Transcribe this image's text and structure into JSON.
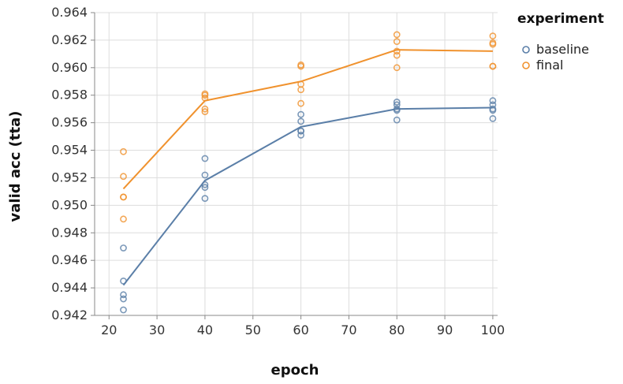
{
  "chart_data": {
    "type": "line",
    "xlabel": "epoch",
    "ylabel": "valid acc (tta)",
    "xlim": [
      17,
      101
    ],
    "ylim": [
      0.942,
      0.964
    ],
    "xticks": [
      "20",
      "30",
      "40",
      "50",
      "60",
      "70",
      "80",
      "90",
      "100"
    ],
    "yticks": [
      "0.942",
      "0.944",
      "0.946",
      "0.948",
      "0.950",
      "0.952",
      "0.954",
      "0.956",
      "0.958",
      "0.960",
      "0.962",
      "0.964"
    ],
    "grid": true,
    "legend": {
      "title": "experiment",
      "placement": "top-right"
    },
    "series": [
      {
        "name": "baseline",
        "color": "#5b7fa8",
        "line": [
          {
            "x": 23,
            "y": 0.9442
          },
          {
            "x": 40,
            "y": 0.9518
          },
          {
            "x": 60,
            "y": 0.9557
          },
          {
            "x": 80,
            "y": 0.957
          },
          {
            "x": 100,
            "y": 0.9571
          }
        ],
        "points": [
          {
            "x": 23,
            "y": 0.9469
          },
          {
            "x": 23,
            "y": 0.9445
          },
          {
            "x": 23,
            "y": 0.9435
          },
          {
            "x": 23,
            "y": 0.9432
          },
          {
            "x": 23,
            "y": 0.9424
          },
          {
            "x": 40,
            "y": 0.9534
          },
          {
            "x": 40,
            "y": 0.9522
          },
          {
            "x": 40,
            "y": 0.9515
          },
          {
            "x": 40,
            "y": 0.9513
          },
          {
            "x": 40,
            "y": 0.9505
          },
          {
            "x": 60,
            "y": 0.9566
          },
          {
            "x": 60,
            "y": 0.9561
          },
          {
            "x": 60,
            "y": 0.9554
          },
          {
            "x": 60,
            "y": 0.9554
          },
          {
            "x": 60,
            "y": 0.9551
          },
          {
            "x": 80,
            "y": 0.9575
          },
          {
            "x": 80,
            "y": 0.9573
          },
          {
            "x": 80,
            "y": 0.957
          },
          {
            "x": 80,
            "y": 0.9569
          },
          {
            "x": 80,
            "y": 0.9562
          },
          {
            "x": 100,
            "y": 0.9576
          },
          {
            "x": 100,
            "y": 0.9573
          },
          {
            "x": 100,
            "y": 0.957
          },
          {
            "x": 100,
            "y": 0.9569
          },
          {
            "x": 100,
            "y": 0.9563
          }
        ]
      },
      {
        "name": "final",
        "color": "#f0922e",
        "line": [
          {
            "x": 23,
            "y": 0.9512
          },
          {
            "x": 40,
            "y": 0.9576
          },
          {
            "x": 60,
            "y": 0.959
          },
          {
            "x": 80,
            "y": 0.9613
          },
          {
            "x": 100,
            "y": 0.9612
          }
        ],
        "points": [
          {
            "x": 23,
            "y": 0.9539
          },
          {
            "x": 23,
            "y": 0.9521
          },
          {
            "x": 23,
            "y": 0.9506
          },
          {
            "x": 23,
            "y": 0.9506
          },
          {
            "x": 23,
            "y": 0.949
          },
          {
            "x": 40,
            "y": 0.9581
          },
          {
            "x": 40,
            "y": 0.958
          },
          {
            "x": 40,
            "y": 0.9578
          },
          {
            "x": 40,
            "y": 0.957
          },
          {
            "x": 40,
            "y": 0.9568
          },
          {
            "x": 60,
            "y": 0.9602
          },
          {
            "x": 60,
            "y": 0.9601
          },
          {
            "x": 60,
            "y": 0.9588
          },
          {
            "x": 60,
            "y": 0.9584
          },
          {
            "x": 60,
            "y": 0.9574
          },
          {
            "x": 80,
            "y": 0.9624
          },
          {
            "x": 80,
            "y": 0.9619
          },
          {
            "x": 80,
            "y": 0.9612
          },
          {
            "x": 80,
            "y": 0.9609
          },
          {
            "x": 80,
            "y": 0.96
          },
          {
            "x": 100,
            "y": 0.9623
          },
          {
            "x": 100,
            "y": 0.9618
          },
          {
            "x": 100,
            "y": 0.9617
          },
          {
            "x": 100,
            "y": 0.9601
          },
          {
            "x": 100,
            "y": 0.9601
          }
        ]
      }
    ]
  }
}
